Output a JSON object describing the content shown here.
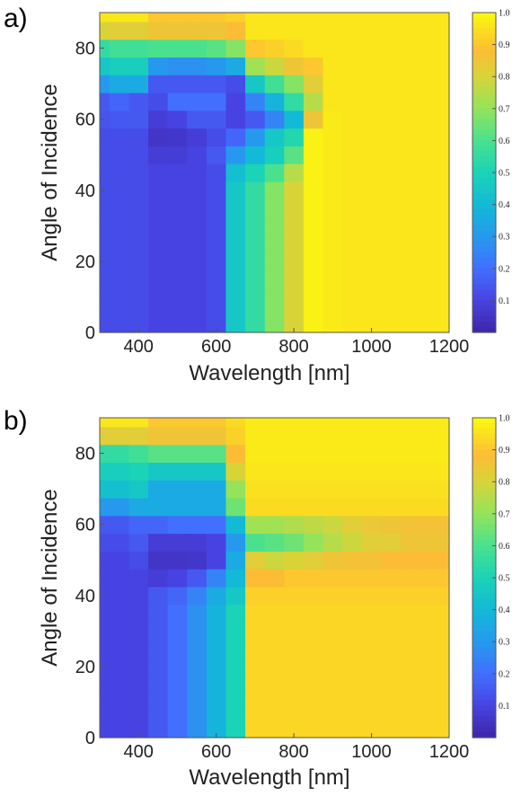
{
  "figure": {
    "panels": [
      {
        "label": "a)",
        "ylabel": "Angle of Incidence",
        "xlabel": "Wavelength [nm]",
        "xticks": [
          "400",
          "600",
          "800",
          "1000",
          "1200"
        ],
        "yticks": [
          "0",
          "20",
          "40",
          "60",
          "80"
        ],
        "colorbar_ticks": [
          "0.1",
          "0.2",
          "0.3",
          "0.4",
          "0.5",
          "0.6",
          "0.7",
          "0.8",
          "0.9",
          "1.0"
        ]
      },
      {
        "label": "b)",
        "ylabel": "Angle of Incidence",
        "xlabel": "Wavelength [nm]",
        "xticks": [
          "400",
          "600",
          "800",
          "1000",
          "1200"
        ],
        "yticks": [
          "0",
          "20",
          "40",
          "60",
          "80"
        ],
        "colorbar_ticks": [
          "0.1",
          "0.2",
          "0.3",
          "0.4",
          "0.5",
          "0.6",
          "0.7",
          "0.8",
          "0.9",
          "1.0"
        ]
      }
    ]
  },
  "chart_data": [
    {
      "type": "heatmap",
      "panel": "a)",
      "xlabel": "Wavelength [nm]",
      "ylabel": "Angle of Incidence",
      "xlim": [
        300,
        1200
      ],
      "ylim": [
        0,
        90
      ],
      "colormap": "parula",
      "colorbar_range": [
        0,
        1.0
      ],
      "x": [
        300,
        350,
        400,
        450,
        500,
        550,
        600,
        650,
        700,
        750,
        800,
        850,
        900,
        950,
        1000,
        1050,
        1100,
        1150,
        1200
      ],
      "y": [
        0,
        5,
        10,
        15,
        20,
        25,
        30,
        35,
        40,
        45,
        50,
        55,
        60,
        65,
        70,
        75,
        80,
        85,
        90
      ],
      "z": [
        [
          0.12,
          0.12,
          0.12,
          0.1,
          0.1,
          0.1,
          0.12,
          0.45,
          0.55,
          0.68,
          0.8,
          0.98,
          0.97,
          0.96,
          0.96,
          0.96,
          0.96,
          0.96,
          0.96
        ],
        [
          0.12,
          0.12,
          0.12,
          0.1,
          0.1,
          0.1,
          0.12,
          0.45,
          0.55,
          0.68,
          0.8,
          0.98,
          0.97,
          0.96,
          0.96,
          0.96,
          0.96,
          0.96,
          0.96
        ],
        [
          0.12,
          0.12,
          0.12,
          0.1,
          0.1,
          0.1,
          0.12,
          0.45,
          0.55,
          0.68,
          0.8,
          0.98,
          0.97,
          0.96,
          0.96,
          0.96,
          0.96,
          0.96,
          0.96
        ],
        [
          0.12,
          0.12,
          0.12,
          0.1,
          0.1,
          0.1,
          0.12,
          0.45,
          0.55,
          0.68,
          0.8,
          0.98,
          0.97,
          0.96,
          0.96,
          0.96,
          0.96,
          0.96,
          0.96
        ],
        [
          0.12,
          0.12,
          0.12,
          0.1,
          0.1,
          0.1,
          0.12,
          0.45,
          0.55,
          0.68,
          0.8,
          0.98,
          0.97,
          0.96,
          0.96,
          0.96,
          0.96,
          0.96,
          0.96
        ],
        [
          0.12,
          0.12,
          0.12,
          0.1,
          0.1,
          0.1,
          0.12,
          0.45,
          0.55,
          0.68,
          0.8,
          0.98,
          0.97,
          0.96,
          0.96,
          0.96,
          0.96,
          0.96,
          0.96
        ],
        [
          0.12,
          0.12,
          0.12,
          0.1,
          0.1,
          0.1,
          0.12,
          0.45,
          0.55,
          0.68,
          0.8,
          0.98,
          0.97,
          0.96,
          0.96,
          0.96,
          0.96,
          0.96,
          0.96
        ],
        [
          0.12,
          0.12,
          0.12,
          0.1,
          0.1,
          0.1,
          0.12,
          0.45,
          0.55,
          0.68,
          0.8,
          0.98,
          0.97,
          0.96,
          0.96,
          0.96,
          0.96,
          0.96,
          0.96
        ],
        [
          0.12,
          0.12,
          0.12,
          0.1,
          0.1,
          0.1,
          0.12,
          0.45,
          0.55,
          0.68,
          0.8,
          0.98,
          0.97,
          0.96,
          0.96,
          0.96,
          0.96,
          0.96,
          0.96
        ],
        [
          0.12,
          0.12,
          0.12,
          0.1,
          0.1,
          0.1,
          0.12,
          0.42,
          0.5,
          0.6,
          0.75,
          0.98,
          0.97,
          0.96,
          0.96,
          0.96,
          0.96,
          0.96,
          0.96
        ],
        [
          0.12,
          0.12,
          0.12,
          0.08,
          0.08,
          0.1,
          0.15,
          0.3,
          0.4,
          0.48,
          0.62,
          0.98,
          0.97,
          0.96,
          0.96,
          0.96,
          0.96,
          0.96,
          0.96
        ],
        [
          0.12,
          0.12,
          0.12,
          0.05,
          0.06,
          0.08,
          0.12,
          0.18,
          0.3,
          0.45,
          0.52,
          0.98,
          0.97,
          0.96,
          0.96,
          0.96,
          0.96,
          0.96,
          0.96
        ],
        [
          0.14,
          0.15,
          0.15,
          0.08,
          0.1,
          0.15,
          0.15,
          0.1,
          0.15,
          0.25,
          0.4,
          0.85,
          0.97,
          0.96,
          0.96,
          0.96,
          0.96,
          0.96,
          0.96
        ],
        [
          0.15,
          0.18,
          0.15,
          0.12,
          0.2,
          0.2,
          0.2,
          0.1,
          0.25,
          0.38,
          0.55,
          0.75,
          0.96,
          0.96,
          0.96,
          0.96,
          0.96,
          0.96,
          0.96
        ],
        [
          0.3,
          0.35,
          0.35,
          0.15,
          0.15,
          0.15,
          0.15,
          0.12,
          0.45,
          0.58,
          0.68,
          0.82,
          0.96,
          0.96,
          0.96,
          0.96,
          0.96,
          0.96,
          0.96
        ],
        [
          0.45,
          0.48,
          0.48,
          0.3,
          0.28,
          0.28,
          0.3,
          0.35,
          0.72,
          0.78,
          0.85,
          0.9,
          0.96,
          0.96,
          0.96,
          0.96,
          0.96,
          0.96,
          0.96
        ],
        [
          0.55,
          0.58,
          0.58,
          0.6,
          0.6,
          0.6,
          0.62,
          0.68,
          0.9,
          0.92,
          0.94,
          0.96,
          0.96,
          0.96,
          0.96,
          0.96,
          0.96,
          0.96,
          0.96
        ],
        [
          0.8,
          0.82,
          0.82,
          0.85,
          0.85,
          0.85,
          0.85,
          0.88,
          0.96,
          0.96,
          0.96,
          0.96,
          0.96,
          0.96,
          0.96,
          0.96,
          0.96,
          0.96,
          0.96
        ],
        [
          0.96,
          0.96,
          0.96,
          0.9,
          0.9,
          0.9,
          0.9,
          0.92,
          0.96,
          0.96,
          0.96,
          0.96,
          0.96,
          0.96,
          0.96,
          0.96,
          0.96,
          0.96,
          0.96
        ]
      ]
    },
    {
      "type": "heatmap",
      "panel": "b)",
      "xlabel": "Wavelength [nm]",
      "ylabel": "Angle of Incidence",
      "xlim": [
        300,
        1200
      ],
      "ylim": [
        0,
        90
      ],
      "colormap": "parula",
      "colorbar_range": [
        0,
        1.0
      ],
      "x": [
        300,
        350,
        400,
        450,
        500,
        550,
        600,
        650,
        700,
        750,
        800,
        850,
        900,
        950,
        1000,
        1050,
        1100,
        1150,
        1200
      ],
      "y": [
        0,
        5,
        10,
        15,
        20,
        25,
        30,
        35,
        40,
        45,
        50,
        55,
        60,
        65,
        70,
        75,
        80,
        85,
        90
      ],
      "z": [
        [
          0.1,
          0.1,
          0.1,
          0.15,
          0.2,
          0.28,
          0.38,
          0.5,
          0.93,
          0.93,
          0.93,
          0.93,
          0.93,
          0.93,
          0.93,
          0.93,
          0.93,
          0.93,
          0.93
        ],
        [
          0.1,
          0.1,
          0.1,
          0.15,
          0.2,
          0.28,
          0.38,
          0.5,
          0.93,
          0.93,
          0.93,
          0.93,
          0.93,
          0.93,
          0.93,
          0.93,
          0.93,
          0.93,
          0.93
        ],
        [
          0.1,
          0.1,
          0.1,
          0.15,
          0.2,
          0.28,
          0.38,
          0.5,
          0.93,
          0.93,
          0.93,
          0.93,
          0.93,
          0.93,
          0.93,
          0.93,
          0.93,
          0.93,
          0.93
        ],
        [
          0.1,
          0.1,
          0.1,
          0.15,
          0.2,
          0.28,
          0.38,
          0.5,
          0.93,
          0.93,
          0.93,
          0.93,
          0.93,
          0.93,
          0.93,
          0.93,
          0.93,
          0.93,
          0.93
        ],
        [
          0.1,
          0.1,
          0.1,
          0.15,
          0.2,
          0.28,
          0.38,
          0.5,
          0.93,
          0.93,
          0.93,
          0.93,
          0.93,
          0.93,
          0.93,
          0.93,
          0.93,
          0.93,
          0.93
        ],
        [
          0.1,
          0.1,
          0.1,
          0.15,
          0.2,
          0.28,
          0.38,
          0.5,
          0.93,
          0.93,
          0.93,
          0.93,
          0.93,
          0.93,
          0.93,
          0.93,
          0.93,
          0.93,
          0.93
        ],
        [
          0.1,
          0.1,
          0.1,
          0.15,
          0.2,
          0.28,
          0.38,
          0.5,
          0.93,
          0.93,
          0.93,
          0.93,
          0.93,
          0.93,
          0.93,
          0.93,
          0.93,
          0.93,
          0.93
        ],
        [
          0.1,
          0.1,
          0.1,
          0.15,
          0.2,
          0.28,
          0.38,
          0.5,
          0.93,
          0.93,
          0.93,
          0.93,
          0.93,
          0.93,
          0.93,
          0.93,
          0.93,
          0.93,
          0.93
        ],
        [
          0.1,
          0.1,
          0.1,
          0.15,
          0.18,
          0.25,
          0.35,
          0.45,
          0.92,
          0.92,
          0.92,
          0.92,
          0.92,
          0.92,
          0.92,
          0.92,
          0.92,
          0.92,
          0.92
        ],
        [
          0.1,
          0.1,
          0.1,
          0.08,
          0.1,
          0.15,
          0.25,
          0.4,
          0.88,
          0.88,
          0.9,
          0.9,
          0.9,
          0.9,
          0.9,
          0.9,
          0.9,
          0.9,
          0.9
        ],
        [
          0.1,
          0.1,
          0.12,
          0.05,
          0.05,
          0.06,
          0.1,
          0.35,
          0.82,
          0.78,
          0.8,
          0.82,
          0.85,
          0.86,
          0.86,
          0.88,
          0.88,
          0.88,
          0.88
        ],
        [
          0.12,
          0.12,
          0.15,
          0.08,
          0.08,
          0.08,
          0.1,
          0.3,
          0.6,
          0.62,
          0.65,
          0.7,
          0.75,
          0.78,
          0.82,
          0.82,
          0.85,
          0.85,
          0.85
        ],
        [
          0.15,
          0.15,
          0.18,
          0.18,
          0.2,
          0.2,
          0.2,
          0.4,
          0.72,
          0.72,
          0.74,
          0.76,
          0.78,
          0.82,
          0.84,
          0.85,
          0.86,
          0.86,
          0.86
        ],
        [
          0.3,
          0.3,
          0.35,
          0.35,
          0.35,
          0.35,
          0.35,
          0.65,
          0.94,
          0.94,
          0.94,
          0.94,
          0.94,
          0.94,
          0.94,
          0.94,
          0.94,
          0.94,
          0.94
        ],
        [
          0.42,
          0.42,
          0.45,
          0.35,
          0.35,
          0.35,
          0.35,
          0.7,
          0.95,
          0.95,
          0.95,
          0.95,
          0.95,
          0.95,
          0.95,
          0.95,
          0.95,
          0.95,
          0.95
        ],
        [
          0.48,
          0.48,
          0.5,
          0.45,
          0.45,
          0.45,
          0.45,
          0.8,
          0.96,
          0.96,
          0.96,
          0.96,
          0.96,
          0.96,
          0.96,
          0.96,
          0.96,
          0.96,
          0.96
        ],
        [
          0.55,
          0.55,
          0.58,
          0.62,
          0.62,
          0.62,
          0.62,
          0.88,
          0.97,
          0.97,
          0.97,
          0.97,
          0.97,
          0.97,
          0.97,
          0.97,
          0.97,
          0.97,
          0.97
        ],
        [
          0.82,
          0.82,
          0.82,
          0.85,
          0.85,
          0.85,
          0.85,
          0.92,
          0.97,
          0.97,
          0.97,
          0.97,
          0.97,
          0.97,
          0.97,
          0.97,
          0.97,
          0.97,
          0.97
        ],
        [
          0.96,
          0.96,
          0.96,
          0.9,
          0.9,
          0.9,
          0.9,
          0.94,
          0.97,
          0.97,
          0.97,
          0.97,
          0.97,
          0.97,
          0.97,
          0.97,
          0.97,
          0.97,
          0.97
        ]
      ]
    }
  ]
}
